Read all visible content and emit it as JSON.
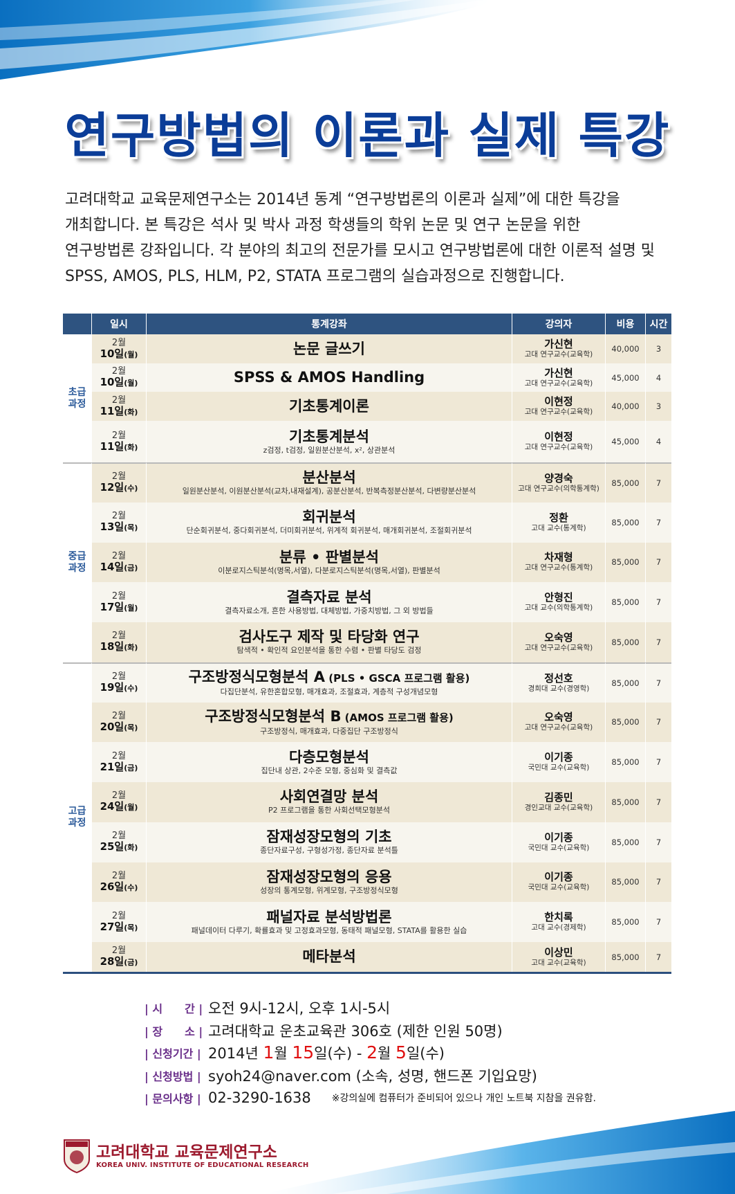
{
  "title": "연구방법의 이론과 실제 특강",
  "intro_lines": [
    "고려대학교 교육문제연구소는 2014년 동계 “연구방법론의 이론과 실제”에 대한 특강을",
    "개최합니다. 본 특강은 석사 및 박사 과정 학생들의 학위 논문 및 연구 논문을 위한",
    "연구방법론 강좌입니다. 각 분야의 최고의 전문가를 모시고 연구방법론에 대한 이론적 설명 및",
    "SPSS, AMOS, PLS, HLM, P2, STATA 프로그램의 실습과정으로 진행합니다."
  ],
  "table": {
    "headers": [
      "",
      "일시",
      "통계강좌",
      "강의자",
      "비용",
      "시간"
    ],
    "groups": [
      {
        "label": "초급\n과정",
        "rows": 4
      },
      {
        "label": "중급\n과정",
        "rows": 5
      },
      {
        "label": "고급\n과정",
        "rows": 8
      }
    ],
    "rows": [
      {
        "month": "2월",
        "day": "10일",
        "dow": "(월)",
        "title": "논문 글쓰기",
        "title_note": "",
        "sub": "",
        "lecturer": "가신현",
        "affil": "고대 연구교수(교육학)",
        "fee": "40,000",
        "hours": "3"
      },
      {
        "month": "2월",
        "day": "10일",
        "dow": "(월)",
        "title": "SPSS & AMOS Handling",
        "title_note": "",
        "sub": "",
        "lecturer": "가신현",
        "affil": "고대 연구교수(교육학)",
        "fee": "45,000",
        "hours": "4"
      },
      {
        "month": "2월",
        "day": "11일",
        "dow": "(화)",
        "title": "기초통계이론",
        "title_note": "",
        "sub": "",
        "lecturer": "이현정",
        "affil": "고대 연구교수(교육학)",
        "fee": "40,000",
        "hours": "3"
      },
      {
        "month": "2월",
        "day": "11일",
        "dow": "(화)",
        "title": "기초통계분석",
        "title_note": "",
        "sub": "z검정, t검정, 일원분산분석, x², 상관분석",
        "lecturer": "이현정",
        "affil": "고대 연구교수(교육학)",
        "fee": "45,000",
        "hours": "4"
      },
      {
        "month": "2월",
        "day": "12일",
        "dow": "(수)",
        "title": "분산분석",
        "title_note": "",
        "sub": "일원분산분석, 이원분산분석(교차,내재설계), 공분산분석, 반복측정분산분석, 다변량분산분석",
        "lecturer": "양경숙",
        "affil": "고대 연구교수(의학통계학)",
        "fee": "85,000",
        "hours": "7"
      },
      {
        "month": "2월",
        "day": "13일",
        "dow": "(목)",
        "title": "회귀분석",
        "title_note": "",
        "sub": "단순회귀분석, 중다회귀분석, 더미회귀분석, 위계적 회귀분석, 매개회귀분석, 조절회귀분석",
        "lecturer": "정환",
        "affil": "고대 교수(통계학)",
        "fee": "85,000",
        "hours": "7"
      },
      {
        "month": "2월",
        "day": "14일",
        "dow": "(금)",
        "title": "분류 • 판별분석",
        "title_note": "",
        "sub": "이분로지스틱분석(명목,서열), 다분로지스틱분석(명목,서열), 판별분석",
        "lecturer": "차재형",
        "affil": "고대 연구교수(통계학)",
        "fee": "85,000",
        "hours": "7"
      },
      {
        "month": "2월",
        "day": "17일",
        "dow": "(월)",
        "title": "결측자료 분석",
        "title_note": "",
        "sub": "결측자료소개, 흔한 사용방법, 대체방법, 가중치방법, 그 외 방법들",
        "lecturer": "안형진",
        "affil": "고대 교수(의학통계학)",
        "fee": "85,000",
        "hours": "7"
      },
      {
        "month": "2월",
        "day": "18일",
        "dow": "(화)",
        "title": "검사도구 제작 및 타당화 연구",
        "title_note": "",
        "sub": "탐색적 • 확인적 요인분석을 통한 수렴 • 판별 타당도 검정",
        "lecturer": "오숙영",
        "affil": "고대 연구교수(교육학)",
        "fee": "85,000",
        "hours": "7"
      },
      {
        "month": "2월",
        "day": "19일",
        "dow": "(수)",
        "title": "구조방정식모형분석 A",
        "title_note": " (PLS • GSCA 프로그램 활용)",
        "sub": "다집단분석, 유한혼합모형, 매개효과, 조절효과, 계층적 구성개념모형",
        "lecturer": "정선호",
        "affil": "경희대 교수(경영학)",
        "fee": "85,000",
        "hours": "7"
      },
      {
        "month": "2월",
        "day": "20일",
        "dow": "(목)",
        "title": "구조방정식모형분석 B",
        "title_note": " (AMOS 프로그램 활용)",
        "sub": "구조방정식, 매개효과, 다중집단 구조방정식",
        "lecturer": "오숙영",
        "affil": "고대 연구교수(교육학)",
        "fee": "85,000",
        "hours": "7"
      },
      {
        "month": "2월",
        "day": "21일",
        "dow": "(금)",
        "title": "다층모형분석",
        "title_note": "",
        "sub": "집단내 상관, 2수준 모형, 중심화 및 결측값",
        "lecturer": "이기종",
        "affil": "국민대 교수(교육학)",
        "fee": "85,000",
        "hours": "7"
      },
      {
        "month": "2월",
        "day": "24일",
        "dow": "(월)",
        "title": "사회연결망 분석",
        "title_note": "",
        "sub": "P2 프로그램을 통한 사회선택모형분석",
        "lecturer": "김종민",
        "affil": "경인교대 교수(교육학)",
        "fee": "85,000",
        "hours": "7"
      },
      {
        "month": "2월",
        "day": "25일",
        "dow": "(화)",
        "title": "잠재성장모형의 기초",
        "title_note": "",
        "sub": "종단자료구성, 구형성가정, 종단자료 분석틀",
        "lecturer": "이기종",
        "affil": "국민대 교수(교육학)",
        "fee": "85,000",
        "hours": "7"
      },
      {
        "month": "2월",
        "day": "26일",
        "dow": "(수)",
        "title": "잠재성장모형의 응용",
        "title_note": "",
        "sub": "성장의 통계모형, 위계모형, 구조방정식모형",
        "lecturer": "이기종",
        "affil": "국민대 교수(교육학)",
        "fee": "85,000",
        "hours": "7"
      },
      {
        "month": "2월",
        "day": "27일",
        "dow": "(목)",
        "title": "패널자료 분석방법론",
        "title_note": "",
        "sub": "패널데이터 다루기, 확률효과 및 고정효과모형, 동태적 패널모형, STATA를 활용한 실습",
        "lecturer": "한치록",
        "affil": "고대 교수(경제학)",
        "fee": "85,000",
        "hours": "7"
      },
      {
        "month": "2월",
        "day": "28일",
        "dow": "(금)",
        "title": "메타분석",
        "title_note": "",
        "sub": "",
        "lecturer": "이상민",
        "affil": "고대 교수(교육학)",
        "fee": "85,000",
        "hours": "7"
      }
    ]
  },
  "info": {
    "time_label": "| 시　　간 |",
    "time_value": "오전 9시-12시, 오후 1시-5시",
    "place_label": "| 장　　소 |",
    "place_value": "고려대학교 운초교육관 306호 (제한 인원 50명)",
    "period_label": "| 신청기간 |",
    "period": {
      "year": "2014년 ",
      "m1": "1",
      "m1u": "월 ",
      "d1": "15",
      "d1u": "일(수) - ",
      "m2": "2",
      "m2u": "월 ",
      "d2": "5",
      "d2u": "일(수)"
    },
    "method_label": "| 신청방법 |",
    "method_value": "syoh24@naver.com (소속, 성명, 핸드폰 기입요망)",
    "contact_label": "| 문의사항 |",
    "contact_value": "02-3290-1638",
    "note": "※강의실에 컴퓨터가 준비되어 있으나 개인 노트북 지참을 권유함."
  },
  "footer": {
    "org_name": "고려대학교 교육문제연구소",
    "org_name_en": "KOREA UNIV. INSTITUTE OF EDUCATIONAL RESEARCH",
    "seal_text": "KOREA UNIVERSITY 1905"
  },
  "colors": {
    "title": "#0b3d98",
    "header_bg": "#2e5380",
    "group_label": "#2b5a9a",
    "row_odd": "#efe8d6",
    "row_even": "#f7f5ee",
    "info_label": "#6a2f8a",
    "highlight": "#e01010",
    "brand": "#9c1a2e"
  }
}
